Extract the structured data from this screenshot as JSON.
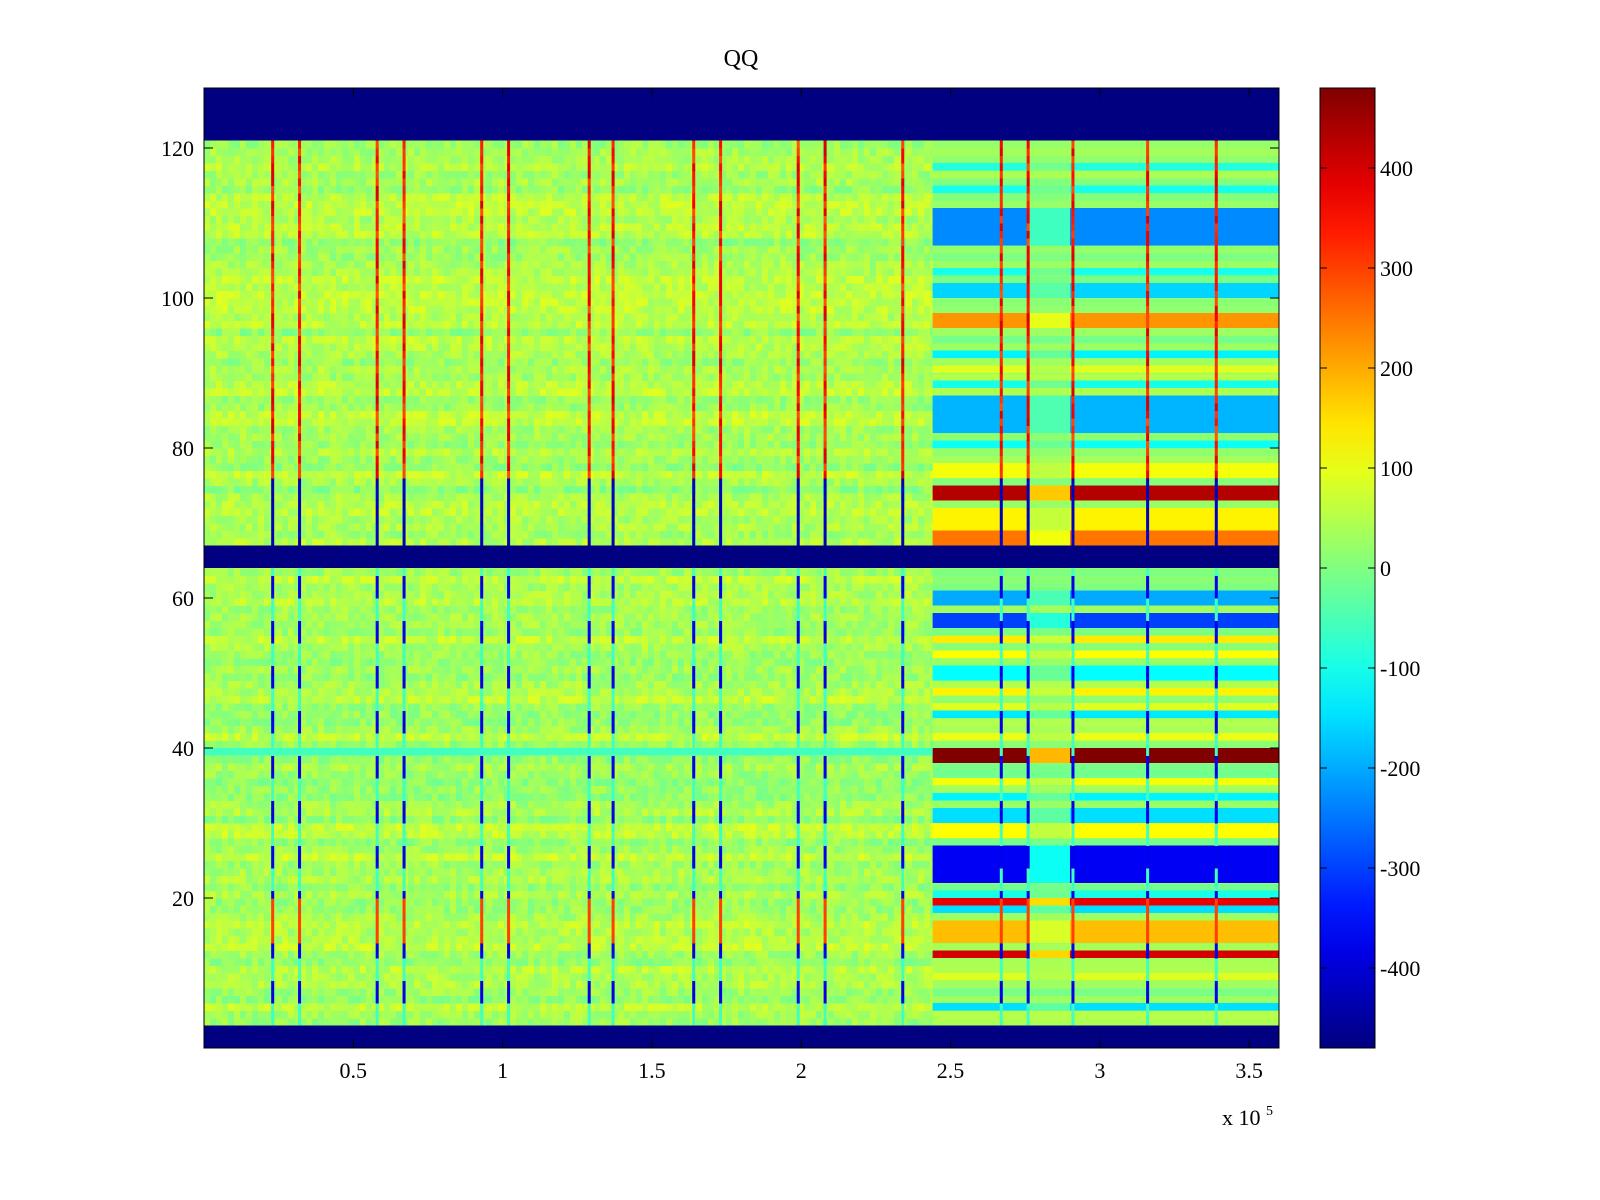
{
  "chart_data": {
    "type": "heatmap",
    "title": "QQ",
    "xlabel": "",
    "ylabel": "",
    "x_multiplier_label": "x 10",
    "x_multiplier_exponent": "5",
    "xlim": [
      0,
      360000
    ],
    "ylim": [
      0,
      128
    ],
    "xticks": [
      50000,
      100000,
      150000,
      200000,
      250000,
      300000,
      350000
    ],
    "xtick_labels": [
      "0.5",
      "1",
      "1.5",
      "2",
      "2.5",
      "3",
      "3.5"
    ],
    "yticks": [
      20,
      40,
      60,
      80,
      100,
      120
    ],
    "ytick_labels": [
      "20",
      "40",
      "60",
      "80",
      "100",
      "120"
    ],
    "colorbar": {
      "colormap": "jet",
      "range": [
        -480,
        480
      ],
      "ticks": [
        400,
        300,
        200,
        100,
        0,
        -100,
        -200,
        -300,
        -400
      ],
      "tick_labels": [
        "400",
        "300",
        "200",
        "100",
        "0",
        "-100",
        "-200",
        "-300",
        "-400"
      ]
    },
    "background_value": 40,
    "empty_channel_ranges": [
      [
        0,
        3
      ],
      [
        64,
        67
      ],
      [
        121,
        128
      ]
    ],
    "regime_change_x": 244000,
    "gap_x_range": [
      276000,
      290000
    ],
    "spike_lines_x": [
      23000,
      32000,
      58000,
      67000,
      93000,
      102000,
      129000,
      137000,
      164000,
      173000,
      199000,
      208000,
      234000,
      267000,
      276000,
      291000,
      316000,
      339000
    ],
    "late_regime_bands": [
      {
        "y_range": [
          5,
          6
        ],
        "value": -150
      },
      {
        "y_range": [
          9,
          10
        ],
        "value": 90
      },
      {
        "y_range": [
          12,
          13
        ],
        "value": 400
      },
      {
        "y_range": [
          14,
          17
        ],
        "value": 180
      },
      {
        "y_range": [
          18,
          19
        ],
        "value": -150
      },
      {
        "y_range": [
          19,
          20
        ],
        "value": 380
      },
      {
        "y_range": [
          20,
          21
        ],
        "value": -100
      },
      {
        "y_range": [
          22,
          27
        ],
        "value": -370
      },
      {
        "y_range": [
          28,
          30
        ],
        "value": 120
      },
      {
        "y_range": [
          30,
          32
        ],
        "value": -150
      },
      {
        "y_range": [
          33,
          34
        ],
        "value": -130
      },
      {
        "y_range": [
          35,
          36
        ],
        "value": 110
      },
      {
        "y_range": [
          38,
          40
        ],
        "value": 480
      },
      {
        "y_range": [
          41,
          42
        ],
        "value": 100
      },
      {
        "y_range": [
          44,
          45
        ],
        "value": -140
      },
      {
        "y_range": [
          45,
          46
        ],
        "value": 90
      },
      {
        "y_range": [
          47,
          48
        ],
        "value": 130
      },
      {
        "y_range": [
          49,
          51
        ],
        "value": -120
      },
      {
        "y_range": [
          52,
          53
        ],
        "value": 120
      },
      {
        "y_range": [
          54,
          55
        ],
        "value": 140
      },
      {
        "y_range": [
          56,
          58
        ],
        "value": -300
      },
      {
        "y_range": [
          59,
          61
        ],
        "value": -200
      },
      {
        "y_range": [
          67,
          69
        ],
        "value": 250
      },
      {
        "y_range": [
          69,
          72
        ],
        "value": 130
      },
      {
        "y_range": [
          73,
          75
        ],
        "value": 430
      },
      {
        "y_range": [
          76,
          78
        ],
        "value": 110
      },
      {
        "y_range": [
          80,
          81
        ],
        "value": -110
      },
      {
        "y_range": [
          82,
          87
        ],
        "value": -190
      },
      {
        "y_range": [
          88,
          89
        ],
        "value": -100
      },
      {
        "y_range": [
          90,
          91
        ],
        "value": 90
      },
      {
        "y_range": [
          92,
          93
        ],
        "value": -130
      },
      {
        "y_range": [
          96,
          98
        ],
        "value": 220
      },
      {
        "y_range": [
          100,
          102
        ],
        "value": -160
      },
      {
        "y_range": [
          103,
          104
        ],
        "value": -100
      },
      {
        "y_range": [
          107,
          112
        ],
        "value": -230
      },
      {
        "y_range": [
          114,
          115
        ],
        "value": -100
      },
      {
        "y_range": [
          117,
          118
        ],
        "value": -90
      }
    ]
  }
}
